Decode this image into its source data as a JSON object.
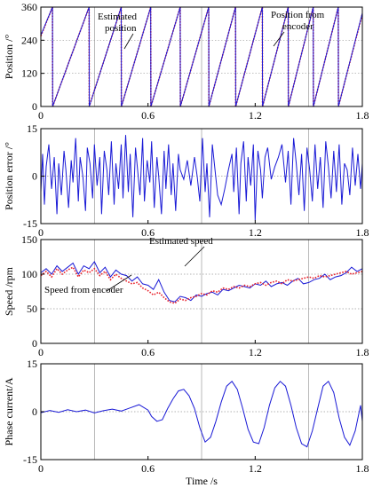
{
  "chart_data": [
    {
      "type": "line",
      "ylabel": "Position /°",
      "xlim": [
        0,
        1.8
      ],
      "ylim": [
        0,
        360
      ],
      "xticks": [
        0,
        0.6,
        1.2,
        1.8
      ],
      "xtick_labels": [
        "0",
        "0.6",
        "1.2",
        "1.8"
      ],
      "yticks": [
        0,
        120,
        240,
        360
      ],
      "ytick_labels": [
        "0",
        "120",
        "240",
        "360"
      ],
      "grid": true,
      "annotations": [
        "Estimated position",
        "Position from encoder"
      ],
      "series": [
        {
          "name": "Estimated position",
          "color": "#e8202a",
          "style": "dotted",
          "x": [
            0,
            0.065,
            0.066,
            0.27,
            0.271,
            0.45,
            0.451,
            0.615,
            0.616,
            0.78,
            0.781,
            0.94,
            0.941,
            1.09,
            1.091,
            1.24,
            1.241,
            1.385,
            1.386,
            1.525,
            1.526,
            1.665,
            1.666,
            1.8
          ],
          "y": [
            255,
            360,
            0,
            360,
            0,
            360,
            0,
            360,
            0,
            360,
            0,
            360,
            0,
            360,
            0,
            360,
            0,
            360,
            0,
            360,
            0,
            360,
            0,
            335
          ]
        },
        {
          "name": "Position from encoder",
          "color": "#1a1ad6",
          "style": "solid",
          "x": [
            0,
            0.065,
            0.066,
            0.27,
            0.271,
            0.45,
            0.451,
            0.615,
            0.616,
            0.78,
            0.781,
            0.94,
            0.941,
            1.09,
            1.091,
            1.24,
            1.241,
            1.385,
            1.386,
            1.525,
            1.526,
            1.665,
            1.666,
            1.8
          ],
          "y": [
            258,
            360,
            0,
            360,
            0,
            360,
            0,
            360,
            0,
            360,
            0,
            360,
            0,
            360,
            0,
            360,
            0,
            360,
            0,
            360,
            0,
            360,
            0,
            338
          ]
        }
      ]
    },
    {
      "type": "line",
      "ylabel": "Position error /°",
      "xlim": [
        0,
        1.8
      ],
      "ylim": [
        -15,
        15
      ],
      "xticks": [
        0,
        0.6,
        1.2,
        1.8
      ],
      "xtick_labels": [
        "0",
        "0.6",
        "1.2",
        "1.8"
      ],
      "yticks": [
        -15,
        0,
        15
      ],
      "ytick_labels": [
        "-15",
        "0",
        "15"
      ],
      "grid": true,
      "series": [
        {
          "name": "Position error",
          "color": "#1a1ad6",
          "style": "solid",
          "x": [
            0,
            0.01,
            0.02,
            0.03,
            0.045,
            0.06,
            0.075,
            0.09,
            0.1,
            0.115,
            0.13,
            0.14,
            0.155,
            0.17,
            0.18,
            0.195,
            0.21,
            0.22,
            0.235,
            0.25,
            0.26,
            0.275,
            0.29,
            0.3,
            0.315,
            0.33,
            0.34,
            0.355,
            0.37,
            0.38,
            0.395,
            0.41,
            0.42,
            0.435,
            0.45,
            0.46,
            0.475,
            0.49,
            0.5,
            0.515,
            0.53,
            0.54,
            0.555,
            0.57,
            0.58,
            0.595,
            0.61,
            0.62,
            0.635,
            0.65,
            0.66,
            0.675,
            0.69,
            0.7,
            0.715,
            0.73,
            0.74,
            0.755,
            0.77,
            0.78,
            0.8,
            0.82,
            0.84,
            0.86,
            0.875,
            0.89,
            0.905,
            0.92,
            0.93,
            0.945,
            0.96,
            0.975,
            0.99,
            1.01,
            1.03,
            1.05,
            1.07,
            1.08,
            1.095,
            1.11,
            1.12,
            1.135,
            1.15,
            1.16,
            1.175,
            1.19,
            1.2,
            1.215,
            1.23,
            1.24,
            1.255,
            1.27,
            1.29,
            1.31,
            1.33,
            1.35,
            1.37,
            1.385,
            1.4,
            1.415,
            1.43,
            1.445,
            1.46,
            1.475,
            1.49,
            1.505,
            1.52,
            1.535,
            1.55,
            1.565,
            1.58,
            1.595,
            1.61,
            1.625,
            1.64,
            1.655,
            1.67,
            1.685,
            1.7,
            1.715,
            1.73,
            1.745,
            1.76,
            1.775,
            1.79,
            1.8
          ],
          "y": [
            -5,
            7,
            -9,
            3,
            10,
            -4,
            6,
            -12,
            4,
            -6,
            8,
            2,
            -10,
            5,
            -2,
            12,
            -8,
            6,
            0,
            -11,
            9,
            4,
            -7,
            10,
            -3,
            6,
            -12,
            8,
            2,
            -6,
            11,
            -9,
            4,
            -4,
            10,
            -7,
            13,
            -5,
            7,
            -13,
            9,
            3,
            -6,
            12,
            -8,
            5,
            -2,
            11,
            -10,
            6,
            0,
            -12,
            8,
            -4,
            10,
            -6,
            4,
            -11,
            7,
            2,
            -1,
            5,
            -3,
            6,
            0,
            -8,
            12,
            -5,
            4,
            -13,
            10,
            2,
            -6,
            -9,
            -4,
            2,
            7,
            -5,
            9,
            -12,
            4,
            11,
            -8,
            6,
            -3,
            10,
            -14,
            8,
            2,
            -7,
            6,
            9,
            -1,
            3,
            6,
            10,
            -2,
            8,
            -9,
            12,
            4,
            -6,
            7,
            -11,
            9,
            2,
            -8,
            10,
            -4,
            6,
            -10,
            11,
            3,
            -7,
            8,
            -5,
            10,
            -9,
            4,
            2,
            -6,
            9,
            -3,
            7,
            -4,
            4
          ]
        }
      ]
    },
    {
      "type": "line",
      "ylabel": "Speed /rpm",
      "xlim": [
        0,
        1.8
      ],
      "ylim": [
        0,
        150
      ],
      "xticks": [
        0,
        0.6,
        1.2,
        1.8
      ],
      "xtick_labels": [
        "0",
        "0.6",
        "1.2",
        "1.8"
      ],
      "yticks": [
        0,
        50,
        100,
        150
      ],
      "ytick_labels": [
        "0",
        "50",
        "100",
        "150"
      ],
      "grid": true,
      "annotations": [
        "Estimated speed",
        "Speed from encoder"
      ],
      "series": [
        {
          "name": "Estimated speed",
          "color": "#1a1ad6",
          "style": "solid",
          "x": [
            0,
            0.03,
            0.06,
            0.09,
            0.12,
            0.15,
            0.18,
            0.21,
            0.24,
            0.27,
            0.3,
            0.33,
            0.36,
            0.39,
            0.42,
            0.45,
            0.48,
            0.51,
            0.54,
            0.57,
            0.6,
            0.63,
            0.66,
            0.69,
            0.72,
            0.75,
            0.78,
            0.81,
            0.84,
            0.87,
            0.9,
            0.93,
            0.96,
            0.99,
            1.02,
            1.05,
            1.08,
            1.11,
            1.14,
            1.17,
            1.2,
            1.23,
            1.26,
            1.29,
            1.32,
            1.35,
            1.38,
            1.41,
            1.44,
            1.47,
            1.5,
            1.53,
            1.56,
            1.59,
            1.62,
            1.65,
            1.68,
            1.71,
            1.74,
            1.77,
            1.8
          ],
          "y": [
            102,
            108,
            100,
            112,
            104,
            110,
            116,
            100,
            112,
            108,
            118,
            102,
            110,
            96,
            106,
            100,
            98,
            90,
            96,
            86,
            84,
            78,
            92,
            74,
            62,
            60,
            68,
            66,
            62,
            70,
            68,
            72,
            74,
            70,
            78,
            76,
            80,
            84,
            82,
            80,
            86,
            84,
            90,
            82,
            86,
            88,
            84,
            90,
            94,
            86,
            88,
            92,
            94,
            100,
            92,
            96,
            98,
            102,
            110,
            104,
            108
          ]
        },
        {
          "name": "Speed from encoder",
          "color": "#e8202a",
          "style": "dotted",
          "x": [
            0,
            0.03,
            0.06,
            0.09,
            0.12,
            0.15,
            0.18,
            0.21,
            0.24,
            0.27,
            0.3,
            0.33,
            0.36,
            0.39,
            0.42,
            0.45,
            0.48,
            0.51,
            0.54,
            0.57,
            0.6,
            0.63,
            0.66,
            0.69,
            0.72,
            0.75,
            0.78,
            0.81,
            0.84,
            0.87,
            0.9,
            0.93,
            0.96,
            0.99,
            1.02,
            1.05,
            1.08,
            1.11,
            1.14,
            1.17,
            1.2,
            1.23,
            1.26,
            1.29,
            1.32,
            1.35,
            1.38,
            1.41,
            1.44,
            1.47,
            1.5,
            1.53,
            1.56,
            1.59,
            1.62,
            1.65,
            1.68,
            1.71,
            1.74,
            1.77,
            1.8
          ],
          "y": [
            98,
            104,
            96,
            108,
            100,
            106,
            110,
            96,
            106,
            102,
            108,
            98,
            104,
            92,
            100,
            94,
            90,
            86,
            88,
            80,
            76,
            70,
            74,
            66,
            60,
            58,
            64,
            62,
            66,
            68,
            72,
            70,
            76,
            74,
            80,
            78,
            82,
            80,
            84,
            82,
            86,
            88,
            84,
            88,
            90,
            86,
            92,
            90,
            92,
            94,
            96,
            94,
            98,
            96,
            98,
            100,
            102,
            104,
            100,
            102,
            104
          ]
        }
      ]
    },
    {
      "type": "line",
      "ylabel": "Phase current/A",
      "xlabel": "Time /s",
      "xlim": [
        0,
        1.8
      ],
      "ylim": [
        -15,
        15
      ],
      "xticks": [
        0,
        0.6,
        1.2,
        1.8
      ],
      "xtick_labels": [
        "0",
        "0.6",
        "1.2",
        "1.8"
      ],
      "yticks": [
        -15,
        0,
        15
      ],
      "ytick_labels": [
        "-15",
        "0",
        "15"
      ],
      "grid": true,
      "series": [
        {
          "name": "Phase current",
          "color": "#1a1ad6",
          "style": "solid",
          "x": [
            0,
            0.05,
            0.1,
            0.15,
            0.2,
            0.25,
            0.3,
            0.35,
            0.4,
            0.45,
            0.5,
            0.55,
            0.6,
            0.62,
            0.65,
            0.68,
            0.71,
            0.74,
            0.77,
            0.8,
            0.83,
            0.86,
            0.89,
            0.92,
            0.95,
            0.98,
            1.01,
            1.04,
            1.07,
            1.1,
            1.13,
            1.16,
            1.19,
            1.22,
            1.25,
            1.28,
            1.31,
            1.34,
            1.37,
            1.4,
            1.43,
            1.46,
            1.49,
            1.52,
            1.55,
            1.58,
            1.61,
            1.64,
            1.67,
            1.7,
            1.73,
            1.76,
            1.79,
            1.8
          ],
          "y": [
            -0.3,
            0.4,
            -0.2,
            0.6,
            0,
            0.5,
            -0.4,
            0.3,
            0.8,
            0.2,
            1.2,
            2.2,
            0.5,
            -1.5,
            -3,
            -2.5,
            1,
            4,
            6.5,
            7,
            5,
            1,
            -5,
            -9.5,
            -8,
            -3,
            3,
            8,
            9.5,
            7,
            1,
            -5.5,
            -9.5,
            -10,
            -5,
            2,
            7.5,
            9.5,
            8,
            2,
            -5,
            -10,
            -11,
            -6,
            1,
            8,
            9.5,
            6,
            -2,
            -8,
            -10.5,
            -6,
            2,
            -3
          ]
        }
      ]
    }
  ]
}
